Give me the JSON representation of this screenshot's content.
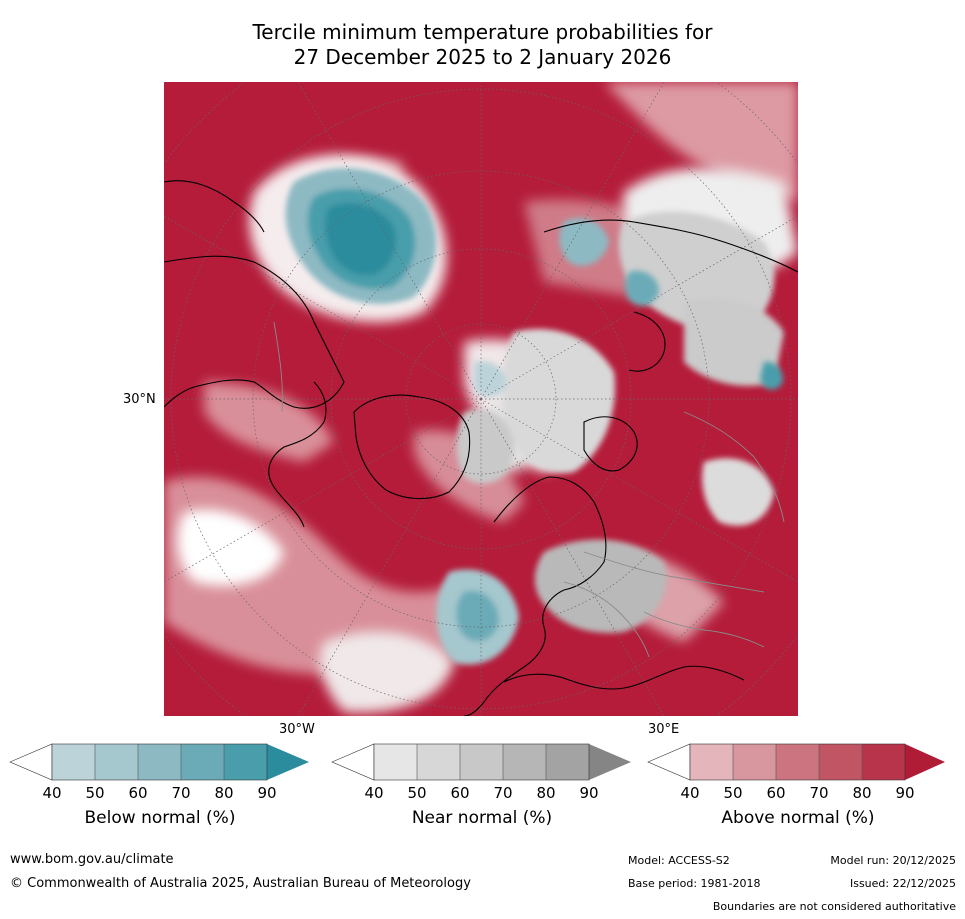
{
  "title": {
    "line1": "Tercile minimum temperature probabilities for",
    "line2": "27 December 2025 to 2 January 2026"
  },
  "map": {
    "lat_label": "30°N",
    "lon_label_west": "30°W",
    "lon_label_east": "30°E",
    "base_color": "#b41c3a"
  },
  "colorbars": [
    {
      "name": "below",
      "label": "Below normal (%)",
      "ticks": [
        "40",
        "50",
        "60",
        "70",
        "80",
        "90"
      ],
      "colors": [
        "#ffffff",
        "#bcd3d9",
        "#a5c7ce",
        "#8db9c3",
        "#6aabb7",
        "#4a9eab",
        "#2a8c9c"
      ]
    },
    {
      "name": "near",
      "label": "Near normal (%)",
      "ticks": [
        "40",
        "50",
        "60",
        "70",
        "80",
        "90"
      ],
      "colors": [
        "#ffffff",
        "#e6e6e6",
        "#d7d7d7",
        "#c8c8c8",
        "#b6b6b6",
        "#a3a3a3",
        "#858585"
      ]
    },
    {
      "name": "above",
      "label": "Above normal (%)",
      "ticks": [
        "40",
        "50",
        "60",
        "70",
        "80",
        "90"
      ],
      "colors": [
        "#ffffff",
        "#e4b6bb",
        "#d8969e",
        "#cc7580",
        "#c25564",
        "#b8344b",
        "#b01b35"
      ]
    }
  ],
  "footer": {
    "website": "www.bom.gov.au/climate",
    "copyright": "© Commonwealth of Australia 2025, Australian Bureau of Meteorology",
    "model": "Model: ACCESS-S2",
    "base_period": "Base period: 1981-2018",
    "model_run": "Model run: 20/12/2025",
    "issued": "Issued: 22/12/2025",
    "disclaimer": "Boundaries are not considered authoritative"
  }
}
